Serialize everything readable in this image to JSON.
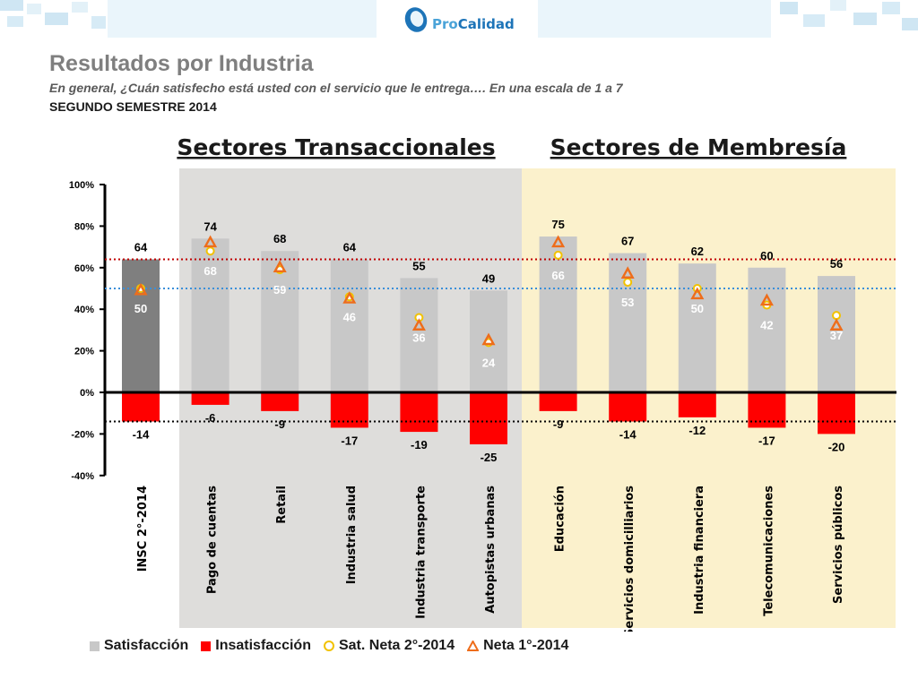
{
  "header": {
    "logo_text_a": "Pro",
    "logo_text_b": "Calidad"
  },
  "title": "Resultados por Industria",
  "subtitle": "En general, ¿Cuán satisfecho está usted con el servicio que le entrega…. En una escala de 1 a 7",
  "period": "SEGUNDO SEMESTRE 2014",
  "legend": {
    "satisfaccion": "Satisfacción",
    "insatisfaccion": "Insatisfacción",
    "sat_neta": "Sat. Neta 2°-2014",
    "neta_1": "Neta 1°-2014"
  },
  "colors": {
    "satisfaction": "#c8c8c8",
    "satisfaction_insc": "#7f7f7f",
    "insatisfaction": "#ff0000",
    "trans_bg": "#dedddb",
    "memb_bg": "#fbf1cc",
    "circle": "#f2c200",
    "triangle": "#ee6d1b",
    "ref_red": "#c00000",
    "ref_blue": "#3b8fd9"
  },
  "chart_data": {
    "type": "bar",
    "group_labels": [
      "Sectores Transaccionales",
      "Sectores de Membresía"
    ],
    "categories": [
      "INSC 2°-2014",
      "Pago de cuentas",
      "Retail",
      "Industria salud",
      "Industria transporte",
      "Autopistas urbanas",
      "Educación",
      "Servicios domicilliarios",
      "Industria financiera",
      "Telecomunicaciones",
      "Servicios públicos"
    ],
    "series": [
      {
        "name": "Satisfacción",
        "values": [
          64,
          74,
          68,
          64,
          55,
          49,
          75,
          67,
          62,
          60,
          56
        ]
      },
      {
        "name": "Insatisfacción",
        "values": [
          -14,
          -6,
          -9,
          -17,
          -19,
          -25,
          -9,
          -14,
          -12,
          -17,
          -20
        ]
      },
      {
        "name": "Sat. Neta 2°-2014",
        "values": [
          50,
          68,
          59,
          46,
          36,
          24,
          66,
          53,
          50,
          42,
          37
        ]
      },
      {
        "name": "Neta 1°-2014",
        "values": [
          49,
          72,
          60,
          45,
          32,
          25,
          72,
          57,
          47,
          44,
          32
        ]
      }
    ],
    "yticks": [
      "100%",
      "80%",
      "60%",
      "40%",
      "20%",
      "0%",
      "-20%",
      "-40%"
    ],
    "ylim": [
      -40,
      100
    ],
    "reference_lines": [
      64,
      50,
      -14
    ]
  }
}
